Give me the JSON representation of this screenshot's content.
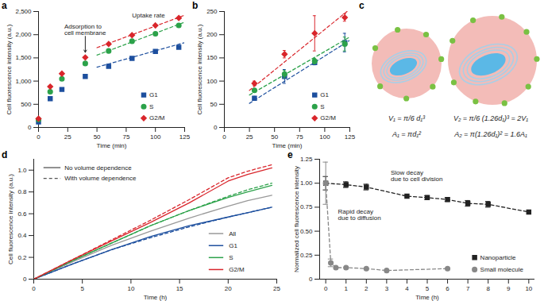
{
  "chart_data": [
    {
      "panel": "a",
      "type": "scatter",
      "xlabel": "Time (min)",
      "ylabel": "Cell fluorescence intensity (a.u.)",
      "x": [
        0,
        10,
        20,
        40,
        60,
        80,
        100,
        120
      ],
      "xlim": [
        0,
        125
      ],
      "xticks": [
        0,
        25,
        50,
        75,
        100,
        125
      ],
      "ylim": [
        0,
        2500
      ],
      "yticks": [
        0,
        500,
        {
          "value": 1000,
          "label": "1,000"
        },
        {
          "value": 1500,
          "label": "1,500"
        },
        {
          "value": 2000,
          "label": "2,000"
        },
        {
          "value": 2500,
          "label": "2,500"
        }
      ],
      "legend": "bottom-right",
      "series": [
        {
          "name": "G1",
          "color": "#1d4f9e",
          "marker": "square",
          "values": [
            120,
            620,
            820,
            1100,
            1320,
            1490,
            1640,
            1730
          ],
          "fit": {
            "x": [
              50,
              125
            ],
            "values": [
              1300,
              1830
            ]
          }
        },
        {
          "name": "S",
          "color": "#2ca24a",
          "marker": "circle",
          "values": [
            170,
            770,
            1050,
            1380,
            1650,
            1860,
            2020,
            2200
          ],
          "fit": {
            "x": [
              50,
              125
            ],
            "values": [
              1560,
              2270
            ]
          }
        },
        {
          "name": "G2/M",
          "color": "#d9262c",
          "marker": "diamond",
          "values": [
            190,
            880,
            1160,
            1510,
            1800,
            1990,
            2200,
            2360
          ],
          "fit": {
            "x": [
              50,
              125
            ],
            "values": [
              1720,
              2420
            ]
          }
        }
      ],
      "annotations": [
        {
          "text": "Adsorption to\ncell membrane",
          "x": 22,
          "y": 2000,
          "arrow_to": {
            "x": 40,
            "y": 1620
          }
        },
        {
          "text": "Uptake rate",
          "x": 80,
          "y": 2380
        }
      ]
    },
    {
      "panel": "b",
      "type": "scatter",
      "xlabel": "Time (min)",
      "ylabel": "Cell fluorescence intensity (a.u.)",
      "x": [
        30,
        60,
        90,
        120
      ],
      "xlim": [
        0,
        125
      ],
      "xticks": [
        0,
        25,
        50,
        75,
        100,
        125
      ],
      "ylim": [
        0,
        250
      ],
      "yticks": [
        0,
        50,
        100,
        150,
        200,
        250
      ],
      "legend": "bottom-right",
      "series": [
        {
          "name": "G1",
          "color": "#1d4f9e",
          "marker": "square",
          "values": [
            63,
            110,
            140,
            183
          ],
          "errors": [
            4,
            15,
            5,
            20
          ],
          "fit": {
            "x": [
              25,
              125
            ],
            "values": [
              52,
              188
            ]
          }
        },
        {
          "name": "S",
          "color": "#2ca24a",
          "marker": "circle",
          "values": [
            80,
            115,
            143,
            180
          ],
          "errors": [
            4,
            8,
            6,
            15
          ],
          "fit": {
            "x": [
              25,
              125
            ],
            "values": [
              70,
              195
            ]
          }
        },
        {
          "name": "G2/M",
          "color": "#d9262c",
          "marker": "diamond",
          "values": [
            95,
            158,
            203,
            237
          ],
          "errors": [
            5,
            8,
            38,
            8
          ],
          "fit": {
            "x": [
              25,
              125
            ],
            "values": [
              80,
              255
            ]
          }
        }
      ]
    },
    {
      "panel": "c",
      "type": "diagram",
      "labels": [
        [
          "V₁ = π/6 d₁³",
          "A₁ = πd₁²"
        ],
        [
          "V₂ = π/6 (1.26d₁)³ = 2V₁",
          "A₂ = π(1.26d₁)² = 1.6A₁"
        ]
      ]
    },
    {
      "panel": "d",
      "type": "line",
      "xlabel": "Time (h)",
      "ylabel": "Cell fluorescence intensity (a.u.)",
      "x": [
        0,
        4,
        8,
        12,
        16,
        20,
        22,
        24.5
      ],
      "xlim": [
        0,
        25
      ],
      "xticks": [
        0,
        5,
        10,
        15,
        20,
        25
      ],
      "ylim": [
        0,
        1.1
      ],
      "yticks": [
        0,
        0.2,
        0.4,
        0.6,
        0.8,
        {
          "value": 1,
          "label": "1.0"
        }
      ],
      "legend": "bottom-right",
      "line_styles": [
        {
          "name": "No volume dependence",
          "line_style": "solid"
        },
        {
          "name": "With volume dependence",
          "line_style": "dashed"
        }
      ],
      "series": [
        {
          "name": "All",
          "color": "#999999",
          "line_style": "solid",
          "values": [
            0,
            0.16,
            0.31,
            0.44,
            0.56,
            0.67,
            0.72,
            0.77
          ]
        },
        {
          "name": "G1",
          "color": "#1d4f9e",
          "line_style": "solid",
          "values": [
            0,
            0.14,
            0.27,
            0.39,
            0.49,
            0.57,
            0.61,
            0.66
          ],
          "values_with_volume": [
            0,
            0.14,
            0.27,
            0.38,
            0.48,
            0.57,
            0.61,
            0.66
          ]
        },
        {
          "name": "S",
          "color": "#2ca24a",
          "line_style": "solid",
          "values": [
            0,
            0.17,
            0.33,
            0.49,
            0.63,
            0.75,
            0.8,
            0.86
          ],
          "values_with_volume": [
            0,
            0.17,
            0.33,
            0.49,
            0.63,
            0.76,
            0.82,
            0.88
          ]
        },
        {
          "name": "G2/M",
          "color": "#d9262c",
          "line_style": "solid",
          "values": [
            0,
            0.18,
            0.35,
            0.52,
            0.7,
            0.9,
            0.96,
            1.02
          ],
          "values_with_volume": [
            0,
            0.18,
            0.36,
            0.54,
            0.73,
            0.93,
            0.99,
            1.05
          ]
        }
      ]
    },
    {
      "panel": "e",
      "type": "line",
      "xlabel": "Time (h)",
      "ylabel": "Normalized cell fluorescence intensity",
      "xlim": [
        -0.3,
        10.3
      ],
      "xticks": [
        0,
        1,
        2,
        3,
        4,
        5,
        6,
        7,
        8,
        9,
        10
      ],
      "ylim": [
        0,
        1.25
      ],
      "yticks": [
        0,
        0.25,
        {
          "value": 0.5,
          "label": "0.50"
        },
        0.75,
        {
          "value": 1,
          "label": "1.00"
        },
        1.25
      ],
      "legend": "bottom-right",
      "series": [
        {
          "name": "Nanoparticle",
          "color": "#222222",
          "marker": "square",
          "line_style": "dashed",
          "x": [
            0,
            1,
            2,
            4,
            5,
            6,
            7,
            8,
            10
          ],
          "values": [
            1.0,
            0.985,
            0.96,
            0.865,
            0.85,
            0.83,
            0.79,
            0.78,
            0.7
          ],
          "errors": [
            0.07,
            0.03,
            0.03,
            null,
            0.02,
            0.02,
            0.03,
            0.03,
            null
          ]
        },
        {
          "name": "Small molecule",
          "color": "#888888",
          "marker": "circle",
          "line_style": "dashed",
          "x": [
            0,
            0.25,
            0.5,
            1,
            2,
            3,
            6
          ],
          "values": [
            1.0,
            0.17,
            0.12,
            0.12,
            0.11,
            0.09,
            0.11
          ],
          "errors": [
            0.22,
            0.04,
            null,
            null,
            null,
            null,
            null
          ]
        }
      ],
      "annotations": [
        {
          "text": "Slow decay\ndue to cell division",
          "x": 3.2,
          "y": 1.02
        },
        {
          "text": "Rapid decay\ndue to diffusion",
          "x": 0.6,
          "y": 0.62
        }
      ]
    }
  ]
}
